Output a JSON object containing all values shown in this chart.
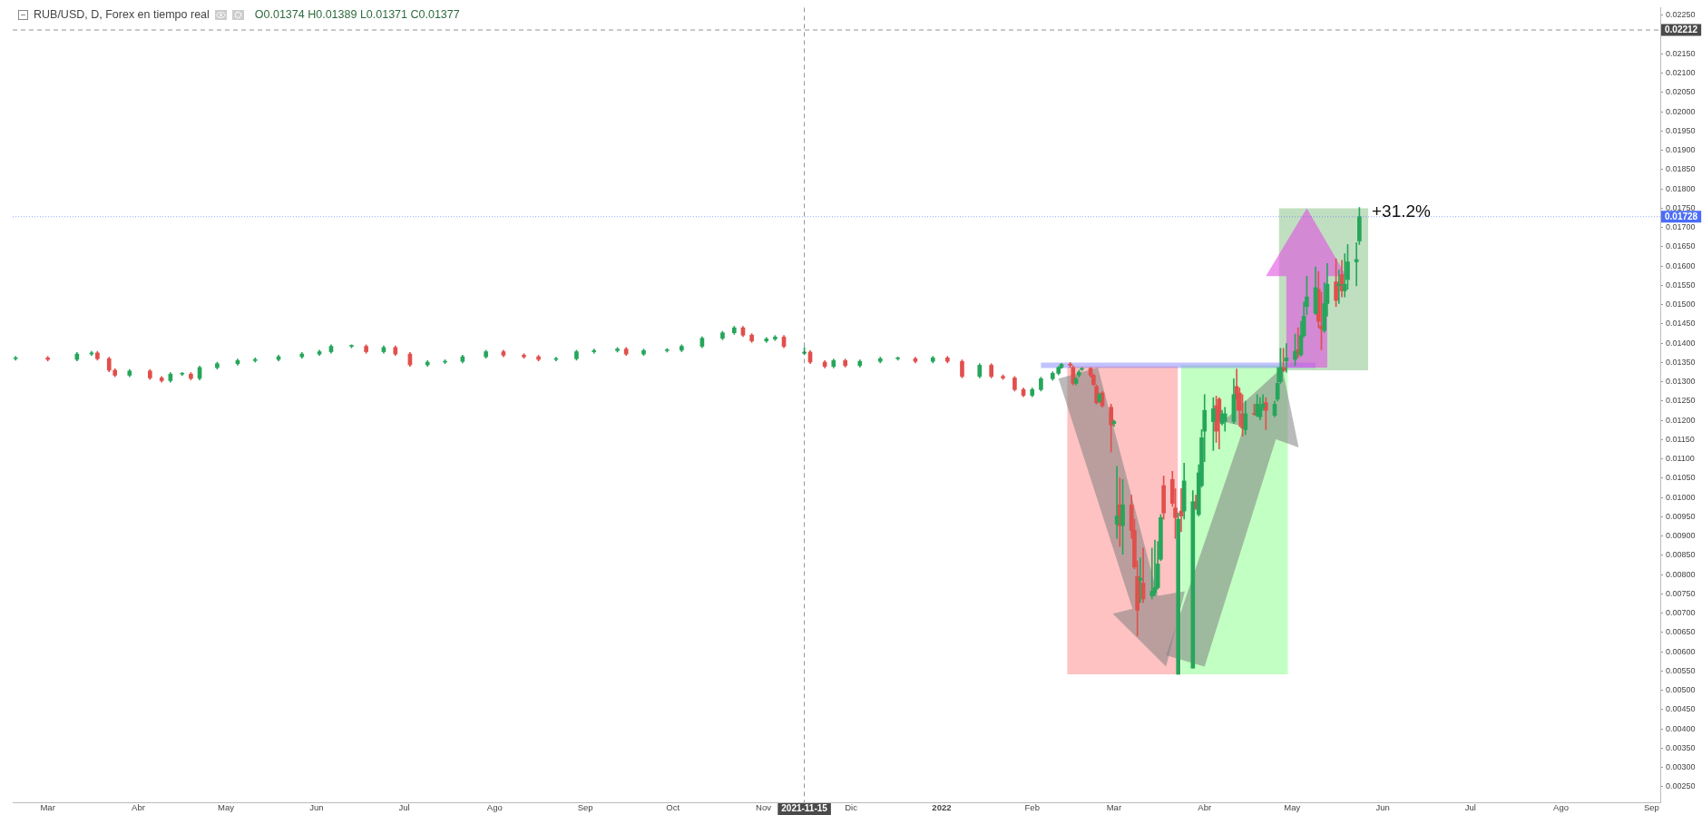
{
  "chart_data": {
    "type": "candlestick",
    "title": "RUB/USD, D, Forex en tiempo real",
    "annotations": [
      "O0.01374 H0.01389 L0.01371 C0.01377",
      "+31.2%"
    ],
    "xlim": [
      "2021-02-17",
      "2022-09-04"
    ],
    "ylim": [
      0.0021,
      0.0227
    ],
    "xticks": [
      {
        "value": "2021-03",
        "label": "Mar"
      },
      {
        "value": "2021-04",
        "label": "Abr"
      },
      {
        "value": "2021-05",
        "label": "May"
      },
      {
        "value": "2021-06",
        "label": "Jun"
      },
      {
        "value": "2021-07",
        "label": "Jul"
      },
      {
        "value": "2021-08",
        "label": "Ago"
      },
      {
        "value": "2021-09",
        "label": "Sep"
      },
      {
        "value": "2021-10",
        "label": "Oct"
      },
      {
        "value": "2021-11",
        "label": "Nov"
      },
      {
        "value": "2021-12",
        "label": "Dic"
      },
      {
        "value": "2022-01",
        "label": "2022"
      },
      {
        "value": "2022-02",
        "label": "Feb"
      },
      {
        "value": "2022-03",
        "label": "Mar"
      },
      {
        "value": "2022-04",
        "label": "Abr"
      },
      {
        "value": "2022-05",
        "label": "May"
      },
      {
        "value": "2022-06",
        "label": "Jun"
      },
      {
        "value": "2022-07",
        "label": "Jul"
      },
      {
        "value": "2022-08",
        "label": "Ago"
      },
      {
        "value": "2022-09",
        "label": "Sep"
      }
    ],
    "yticks": [
      {
        "value": 0.0025,
        "label": "0.00250"
      },
      {
        "value": 0.003,
        "label": "0.00300"
      },
      {
        "value": 0.0035,
        "label": "0.00350"
      },
      {
        "value": 0.004,
        "label": "0.00400"
      },
      {
        "value": 0.0045,
        "label": "0.00450"
      },
      {
        "value": 0.005,
        "label": "0.00500"
      },
      {
        "value": 0.0055,
        "label": "0.00550"
      },
      {
        "value": 0.006,
        "label": "0.00600"
      },
      {
        "value": 0.0065,
        "label": "0.00650"
      },
      {
        "value": 0.007,
        "label": "0.00700"
      },
      {
        "value": 0.0075,
        "label": "0.00750"
      },
      {
        "value": 0.008,
        "label": "0.00800"
      },
      {
        "value": 0.0085,
        "label": "0.00850"
      },
      {
        "value": 0.009,
        "label": "0.00900"
      },
      {
        "value": 0.0095,
        "label": "0.00950"
      },
      {
        "value": 0.01,
        "label": "0.01000"
      },
      {
        "value": 0.0105,
        "label": "0.01050"
      },
      {
        "value": 0.011,
        "label": "0.01100"
      },
      {
        "value": 0.0115,
        "label": "0.01150"
      },
      {
        "value": 0.012,
        "label": "0.01200"
      },
      {
        "value": 0.0125,
        "label": "0.01250"
      },
      {
        "value": 0.013,
        "label": "0.01300"
      },
      {
        "value": 0.0135,
        "label": "0.01350"
      },
      {
        "value": 0.014,
        "label": "0.01400"
      },
      {
        "value": 0.0145,
        "label": "0.01450"
      },
      {
        "value": 0.015,
        "label": "0.01500"
      },
      {
        "value": 0.0155,
        "label": "0.01550"
      },
      {
        "value": 0.016,
        "label": "0.01600"
      },
      {
        "value": 0.0165,
        "label": "0.01650"
      },
      {
        "value": 0.017,
        "label": "0.01700"
      },
      {
        "value": 0.0175,
        "label": "0.01750"
      },
      {
        "value": 0.018,
        "label": "0.01800"
      },
      {
        "value": 0.0185,
        "label": "0.01850"
      },
      {
        "value": 0.019,
        "label": "0.01900"
      },
      {
        "value": 0.0195,
        "label": "0.01950"
      },
      {
        "value": 0.02,
        "label": "0.02000"
      },
      {
        "value": 0.0205,
        "label": "0.02050"
      },
      {
        "value": 0.021,
        "label": "0.02100"
      },
      {
        "value": 0.0215,
        "label": "0.02150"
      },
      {
        "value": 0.022,
        "label": null
      },
      {
        "value": 0.0225,
        "label": "0.02250"
      }
    ],
    "ref_lines": [
      {
        "axis": "x",
        "value": "2021-11-15",
        "label": "2021-11-15",
        "color": "#4a4a4a",
        "line_style": "dashed"
      },
      {
        "axis": "y",
        "value": 0.02212,
        "label": "0.02212",
        "color": "#4a4a4a",
        "line_style": "dashed"
      },
      {
        "axis": "y",
        "value": 0.01728,
        "label": "0.01728",
        "color": "#4a6cf7",
        "line_style": "dotted"
      }
    ],
    "series": [
      {
        "color": "#26a65b",
        "x": [
          "2021-02-18",
          "2021-03-11",
          "2021-03-16",
          "2021-03-29",
          "2021-04-12",
          "2021-04-16",
          "2021-04-22",
          "2021-04-28",
          "2021-05-05",
          "2021-05-11",
          "2021-05-19",
          "2021-05-27",
          "2021-06-02",
          "2021-06-06",
          "2021-06-13",
          "2021-06-24",
          "2021-07-09",
          "2021-07-15",
          "2021-07-21",
          "2021-07-29",
          "2021-08-22",
          "2021-08-29",
          "2021-09-04",
          "2021-09-12",
          "2021-09-21",
          "2021-09-29",
          "2021-10-04",
          "2021-10-11",
          "2021-10-18",
          "2021-10-22",
          "2021-11-02",
          "2021-11-05",
          "2021-11-15",
          "2021-11-25",
          "2021-12-04",
          "2021-12-11",
          "2021-12-17",
          "2021-12-29",
          "2022-01-14",
          "2022-02-01",
          "2022-02-04",
          "2022-02-08",
          "2022-02-10",
          "2022-02-11",
          "2022-02-16",
          "2022-02-17",
          "2022-02-18",
          "2022-02-24",
          "2022-03-01",
          "2022-03-02",
          "2022-03-04",
          "2022-03-10",
          "2022-03-14",
          "2022-03-15",
          "2022-03-16",
          "2022-03-17",
          "2022-03-23",
          "2022-03-25",
          "2022-03-28",
          "2022-03-30",
          "2022-03-31",
          "2022-04-01",
          "2022-04-04",
          "2022-04-07",
          "2022-04-08",
          "2022-04-11",
          "2022-04-15",
          "2022-04-19",
          "2022-04-20",
          "2022-04-21",
          "2022-04-25",
          "2022-04-26",
          "2022-04-27",
          "2022-04-29",
          "2022-05-02",
          "2022-05-04",
          "2022-05-05",
          "2022-05-06",
          "2022-05-09",
          "2022-05-12",
          "2022-05-13",
          "2022-05-17",
          "2022-05-19",
          "2022-05-20",
          "2022-05-23",
          "2022-05-24"
        ],
        "ohlc": [
          [
            0.0136,
            0.01366,
            0.01356,
            0.01362
          ],
          [
            0.01358,
            0.01376,
            0.01354,
            0.01372
          ],
          [
            0.01372,
            0.01379,
            0.01368,
            0.01375
          ],
          [
            0.01317,
            0.01332,
            0.01313,
            0.01328
          ],
          [
            0.01303,
            0.01324,
            0.01299,
            0.0132
          ],
          [
            0.0132,
            0.01324,
            0.01316,
            0.0132
          ],
          [
            0.01309,
            0.01341,
            0.01305,
            0.01337
          ],
          [
            0.01337,
            0.01351,
            0.01333,
            0.01347
          ],
          [
            0.01347,
            0.01359,
            0.01343,
            0.01355
          ],
          [
            0.01355,
            0.01362,
            0.01351,
            0.01358
          ],
          [
            0.01358,
            0.01369,
            0.01354,
            0.01365
          ],
          [
            0.01365,
            0.01376,
            0.01361,
            0.01372
          ],
          [
            0.01372,
            0.01382,
            0.01368,
            0.01378
          ],
          [
            0.01378,
            0.01396,
            0.01374,
            0.01392
          ],
          [
            0.01392,
            0.01396,
            0.01388,
            0.01392
          ],
          [
            0.01378,
            0.01393,
            0.01374,
            0.01389
          ],
          [
            0.01344,
            0.01355,
            0.0134,
            0.01351
          ],
          [
            0.01351,
            0.01357,
            0.01347,
            0.01353
          ],
          [
            0.01353,
            0.01369,
            0.01349,
            0.01365
          ],
          [
            0.01365,
            0.01382,
            0.01361,
            0.01378
          ],
          [
            0.01358,
            0.01364,
            0.01354,
            0.0136
          ],
          [
            0.0136,
            0.01382,
            0.01356,
            0.01378
          ],
          [
            0.01378,
            0.01385,
            0.01374,
            0.01381
          ],
          [
            0.01381,
            0.01389,
            0.01377,
            0.01385
          ],
          [
            0.01372,
            0.01385,
            0.01368,
            0.01381
          ],
          [
            0.01381,
            0.01386,
            0.01377,
            0.01382
          ],
          [
            0.01382,
            0.01396,
            0.01378,
            0.01392
          ],
          [
            0.01392,
            0.01417,
            0.01388,
            0.01413
          ],
          [
            0.01413,
            0.01431,
            0.01409,
            0.01427
          ],
          [
            0.01427,
            0.01444,
            0.01423,
            0.0144
          ],
          [
            0.01406,
            0.01415,
            0.01402,
            0.01411
          ],
          [
            0.01411,
            0.0142,
            0.01407,
            0.01416
          ],
          [
            0.01374,
            0.01389,
            0.01371,
            0.01377
          ],
          [
            0.0134,
            0.01359,
            0.01336,
            0.01355
          ],
          [
            0.01342,
            0.01357,
            0.01338,
            0.01353
          ],
          [
            0.01353,
            0.01364,
            0.01349,
            0.0136
          ],
          [
            0.0136,
            0.01364,
            0.01356,
            0.0136
          ],
          [
            0.01353,
            0.01366,
            0.01349,
            0.01362
          ],
          [
            0.01314,
            0.01347,
            0.0131,
            0.01343
          ],
          [
            0.01265,
            0.01284,
            0.01261,
            0.0128
          ],
          [
            0.0128,
            0.01312,
            0.01276,
            0.01308
          ],
          [
            0.01308,
            0.01326,
            0.01304,
            0.01322
          ],
          [
            0.01322,
            0.0134,
            0.01318,
            0.01337
          ],
          [
            0.01337,
            0.01348,
            0.01335,
            0.01345
          ],
          [
            0.01296,
            0.01312,
            0.01292,
            0.01308
          ],
          [
            0.01317,
            0.0133,
            0.01312,
            0.01325
          ],
          [
            0.01332,
            0.01337,
            0.01329,
            0.01333
          ],
          [
            0.0125,
            0.01271,
            0.01246,
            0.01267
          ],
          [
            0.01192,
            0.01201,
            0.01184,
            0.01197
          ],
          [
            0.00931,
            0.01081,
            0.00894,
            0.00952
          ],
          [
            0.00927,
            0.01047,
            0.00853,
            0.00981
          ],
          [
            0.00786,
            0.00844,
            0.00728,
            0.00791
          ],
          [
            0.00745,
            0.00869,
            0.00737,
            0.00757
          ],
          [
            0.00753,
            0.0089,
            0.00745,
            0.00766
          ],
          [
            0.00766,
            0.00886,
            0.00762,
            0.00828
          ],
          [
            0.0084,
            0.00956,
            0.00836,
            0.00948
          ],
          [
            0.00542,
            0.0096,
            0.00542,
            0.00944
          ],
          [
            0.00965,
            0.01089,
            0.00944,
            0.01043
          ],
          [
            0.00558,
            0.01018,
            0.00558,
            0.00989
          ],
          [
            0.00956,
            0.01085,
            0.00952,
            0.01064
          ],
          [
            0.01031,
            0.01176,
            0.01027,
            0.01155
          ],
          [
            0.01172,
            0.01267,
            0.01093,
            0.01226
          ],
          [
            0.01197,
            0.01259,
            0.01122,
            0.0123
          ],
          [
            0.01192,
            0.01226,
            0.01188,
            0.01217
          ],
          [
            0.01197,
            0.01234,
            0.01172,
            0.01217
          ],
          [
            0.01197,
            0.01308,
            0.01192,
            0.01267
          ],
          [
            0.01176,
            0.0125,
            0.01163,
            0.01217
          ],
          [
            0.01213,
            0.01267,
            0.01209,
            0.01242
          ],
          [
            0.01209,
            0.01259,
            0.01201,
            0.01234
          ],
          [
            0.01234,
            0.01267,
            0.01226,
            0.01242
          ],
          [
            0.01213,
            0.0125,
            0.01209,
            0.01242
          ],
          [
            0.01255,
            0.01337,
            0.0125,
            0.01296
          ],
          [
            0.013,
            0.01387,
            0.01296,
            0.01337
          ],
          [
            0.01354,
            0.01399,
            0.01325,
            0.01362
          ],
          [
            0.01358,
            0.01424,
            0.01342,
            0.01379
          ],
          [
            0.0137,
            0.01457,
            0.01366,
            0.0142
          ],
          [
            0.0142,
            0.01507,
            0.01415,
            0.0147
          ],
          [
            0.01495,
            0.01574,
            0.01474,
            0.0152
          ],
          [
            0.01478,
            0.01598,
            0.01474,
            0.01544
          ],
          [
            0.01433,
            0.01557,
            0.01428,
            0.01503
          ],
          [
            0.01503,
            0.01607,
            0.0147,
            0.01553
          ],
          [
            0.01549,
            0.0159,
            0.01503,
            0.01553
          ],
          [
            0.01536,
            0.01632,
            0.0152,
            0.01553
          ],
          [
            0.01565,
            0.01656,
            0.0154,
            0.01611
          ],
          [
            0.01611,
            0.01661,
            0.01549,
            0.01617
          ],
          [
            0.01665,
            0.01752,
            0.01656,
            0.01728
          ]
        ]
      },
      {
        "color": "#e0504d",
        "x": [
          "2021-03-01",
          "2021-03-18",
          "2021-03-22",
          "2021-03-24",
          "2021-04-05",
          "2021-04-09",
          "2021-04-19",
          "2021-06-18",
          "2021-06-28",
          "2021-07-03",
          "2021-08-04",
          "2021-08-11",
          "2021-08-16",
          "2021-09-15",
          "2021-10-25",
          "2021-10-28",
          "2021-11-08",
          "2021-11-17",
          "2021-11-22",
          "2021-11-29",
          "2021-12-23",
          "2022-01-03",
          "2022-01-08",
          "2022-01-18",
          "2022-01-22",
          "2022-01-26",
          "2022-01-29",
          "2022-02-14",
          "2022-02-15",
          "2022-02-21",
          "2022-02-22",
          "2022-02-23",
          "2022-02-25",
          "2022-02-28",
          "2022-03-03",
          "2022-03-07",
          "2022-03-08",
          "2022-03-09",
          "2022-03-11",
          "2022-03-18",
          "2022-03-21",
          "2022-03-22",
          "2022-03-24",
          "2022-03-29",
          "2022-04-05",
          "2022-04-06",
          "2022-04-12",
          "2022-04-13",
          "2022-04-14",
          "2022-04-18",
          "2022-04-22",
          "2022-04-28",
          "2022-05-03",
          "2022-05-10",
          "2022-05-11",
          "2022-05-16",
          "2022-05-18"
        ],
        "ohlc": [
          [
            0.01362,
            0.01366,
            0.01354,
            0.01358
          ],
          [
            0.01375,
            0.01379,
            0.01356,
            0.0136
          ],
          [
            0.0136,
            0.01364,
            0.01326,
            0.0133
          ],
          [
            0.0133,
            0.01334,
            0.01313,
            0.01317
          ],
          [
            0.01328,
            0.01332,
            0.01306,
            0.0131
          ],
          [
            0.0131,
            0.01314,
            0.01299,
            0.01303
          ],
          [
            0.0132,
            0.01324,
            0.01305,
            0.01309
          ],
          [
            0.01392,
            0.01396,
            0.01374,
            0.01378
          ],
          [
            0.01389,
            0.01393,
            0.01368,
            0.01372
          ],
          [
            0.01372,
            0.01376,
            0.0134,
            0.01344
          ],
          [
            0.01378,
            0.01382,
            0.01365,
            0.01369
          ],
          [
            0.01369,
            0.01373,
            0.01361,
            0.01365
          ],
          [
            0.01365,
            0.01369,
            0.01354,
            0.01358
          ],
          [
            0.01385,
            0.01389,
            0.01368,
            0.01372
          ],
          [
            0.0144,
            0.01444,
            0.01417,
            0.01421
          ],
          [
            0.01421,
            0.01425,
            0.01402,
            0.01406
          ],
          [
            0.01416,
            0.0142,
            0.01388,
            0.01392
          ],
          [
            0.01377,
            0.01381,
            0.01347,
            0.01351
          ],
          [
            0.01351,
            0.01355,
            0.01336,
            0.0134
          ],
          [
            0.01355,
            0.01359,
            0.01338,
            0.01342
          ],
          [
            0.0136,
            0.01364,
            0.01349,
            0.01353
          ],
          [
            0.01362,
            0.01366,
            0.01349,
            0.01353
          ],
          [
            0.01353,
            0.01357,
            0.0131,
            0.01314
          ],
          [
            0.01343,
            0.01347,
            0.0131,
            0.01314
          ],
          [
            0.01314,
            0.01318,
            0.01306,
            0.0131
          ],
          [
            0.0131,
            0.01314,
            0.01276,
            0.0128
          ],
          [
            0.0128,
            0.01284,
            0.01261,
            0.01265
          ],
          [
            0.01346,
            0.0135,
            0.01338,
            0.01343
          ],
          [
            0.01337,
            0.01342,
            0.01292,
            0.01296
          ],
          [
            0.01335,
            0.01337,
            0.01312,
            0.01317
          ],
          [
            0.01317,
            0.0132,
            0.0129,
            0.01293
          ],
          [
            0.01288,
            0.01292,
            0.01242,
            0.01246
          ],
          [
            0.01271,
            0.01275,
            0.01234,
            0.01238
          ],
          [
            0.01234,
            0.01242,
            0.01118,
            0.01188
          ],
          [
            0.00981,
            0.01051,
            0.00873,
            0.00927
          ],
          [
            0.00981,
            0.01006,
            0.00894,
            0.00915
          ],
          [
            0.00915,
            0.00944,
            0.00815,
            0.0082
          ],
          [
            0.00795,
            0.00836,
            0.00641,
            0.00708
          ],
          [
            0.00778,
            0.00869,
            0.00728,
            0.00737
          ],
          [
            0.01031,
            0.01056,
            0.00944,
            0.0096
          ],
          [
            0.01047,
            0.01068,
            0.00977,
            0.00985
          ],
          [
            0.00973,
            0.01023,
            0.00894,
            0.00948
          ],
          [
            0.00965,
            0.01023,
            0.00911,
            0.00952
          ],
          [
            0.00989,
            0.01006,
            0.00969,
            0.00973
          ],
          [
            0.01238,
            0.01263,
            0.01143,
            0.01172
          ],
          [
            0.01255,
            0.01259,
            0.01126,
            0.01197
          ],
          [
            0.01288,
            0.01333,
            0.01226,
            0.01255
          ],
          [
            0.01271,
            0.01284,
            0.01184,
            0.01226
          ],
          [
            0.01217,
            0.01267,
            0.01159,
            0.0118
          ],
          [
            0.01217,
            0.01242,
            0.01213,
            0.01216
          ],
          [
            0.01246,
            0.01259,
            0.01176,
            0.01226
          ],
          [
            0.01337,
            0.01387,
            0.01325,
            0.01329
          ],
          [
            0.01383,
            0.0144,
            0.01362,
            0.0137
          ],
          [
            0.0154,
            0.01586,
            0.0144,
            0.01457
          ],
          [
            0.01445,
            0.01532,
            0.01383,
            0.01437
          ],
          [
            0.01559,
            0.01619,
            0.01495,
            0.01511
          ],
          [
            0.01578,
            0.01615,
            0.0152,
            0.01536
          ]
        ]
      }
    ]
  }
}
